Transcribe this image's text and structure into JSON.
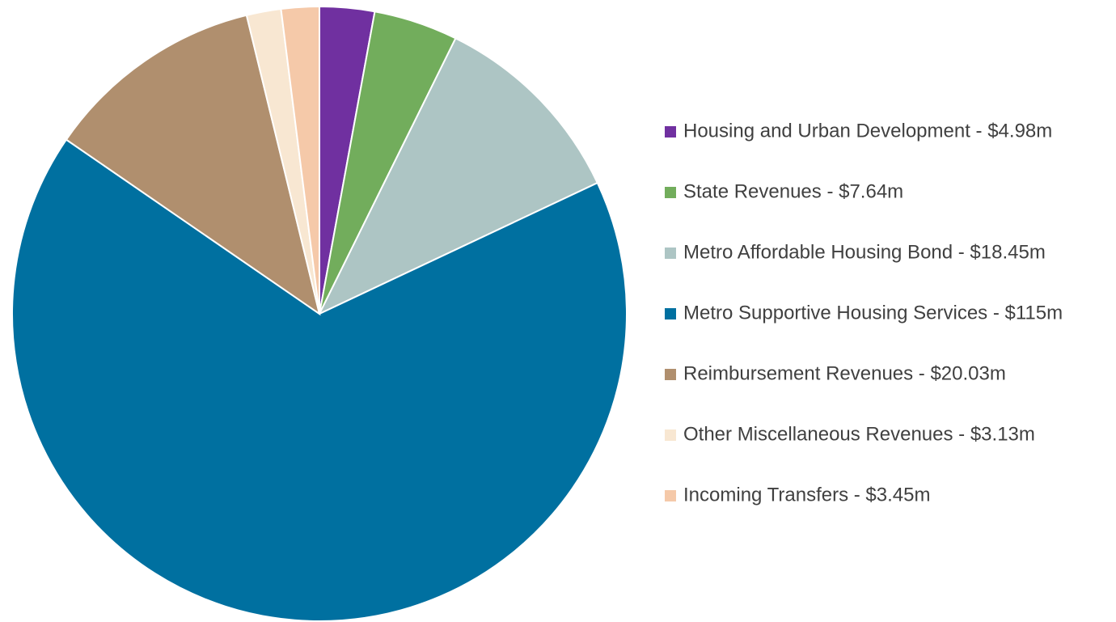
{
  "chart_data": {
    "type": "pie",
    "categories": [
      "Housing and Urban Development - $4.98m",
      "State Revenues - $7.64m",
      "Metro Affordable Housing Bond - $18.45m",
      "Metro Supportive Housing Services - $115m",
      "Reimbursement Revenues - $20.03m",
      "Other Miscellaneous Revenues - $3.13m",
      "Incoming Transfers - $3.45m"
    ],
    "values": [
      4.98,
      7.64,
      18.45,
      115,
      20.03,
      3.13,
      3.45
    ],
    "colors": [
      "#7030a0",
      "#72ad5c",
      "#adc5c4",
      "#0070a0",
      "#b08f6e",
      "#f8e7d2",
      "#f5c9a9"
    ],
    "legend": "right"
  }
}
